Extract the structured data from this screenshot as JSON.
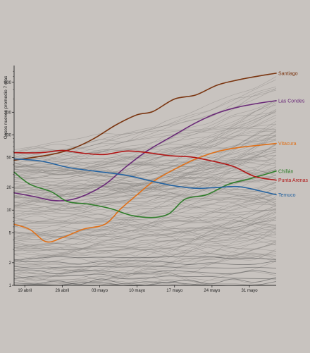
{
  "chart_data": {
    "type": "line",
    "title": "",
    "ylabel": "Casos nuevos promedio 7 días",
    "xlabel": "",
    "y_scale": "log",
    "ylim": [
      1,
      800
    ],
    "x_start": "2020-04-17",
    "x_end": "2020-06-05",
    "x_ticks": [
      {
        "date": "2020-04-19",
        "label": "19 abril"
      },
      {
        "date": "2020-04-26",
        "label": "26 abril"
      },
      {
        "date": "2020-05-03",
        "label": "03 mayo"
      },
      {
        "date": "2020-05-10",
        "label": "10 mayo"
      },
      {
        "date": "2020-05-17",
        "label": "17 mayo"
      },
      {
        "date": "2020-05-24",
        "label": "24 mayo"
      },
      {
        "date": "2020-05-31",
        "label": "31 mayo"
      }
    ],
    "y_ticks": [
      {
        "value": 1,
        "label": "1"
      },
      {
        "value": 2,
        "label": "2"
      },
      {
        "value": 5,
        "label": "5"
      },
      {
        "value": 10,
        "label": "10"
      },
      {
        "value": 20,
        "label": "20"
      },
      {
        "value": 50,
        "label": "50"
      },
      {
        "value": 100,
        "label": "100"
      },
      {
        "value": 200,
        "label": "200"
      },
      {
        "value": 500,
        "label": "500"
      }
    ],
    "background_series_color": "#8a8784",
    "highlighted_series": [
      {
        "name": "Santiago",
        "color": "#7a3510",
        "x": [
          "2020-04-17",
          "2020-04-24",
          "2020-04-28",
          "2020-05-02",
          "2020-05-06",
          "2020-05-10",
          "2020-05-13",
          "2020-05-17",
          "2020-05-21",
          "2020-05-25",
          "2020-05-29",
          "2020-06-02",
          "2020-06-05"
        ],
        "y": [
          46,
          55,
          66,
          90,
          135,
          185,
          205,
          300,
          340,
          460,
          540,
          610,
          660
        ]
      },
      {
        "name": "Las Condes",
        "color": "#6a2a78",
        "x": [
          "2020-04-17",
          "2020-04-21",
          "2020-04-24",
          "2020-04-27",
          "2020-04-30",
          "2020-05-04",
          "2020-05-08",
          "2020-05-12",
          "2020-05-17",
          "2020-05-21",
          "2020-05-25",
          "2020-05-29",
          "2020-06-02",
          "2020-06-05"
        ],
        "y": [
          17,
          15,
          13.5,
          13.5,
          15.5,
          22,
          38,
          62,
          100,
          145,
          195,
          235,
          265,
          285
        ]
      },
      {
        "name": "Vitacura",
        "color": "#e07018",
        "x": [
          "2020-04-17",
          "2020-04-20",
          "2020-04-23",
          "2020-04-26",
          "2020-04-30",
          "2020-05-04",
          "2020-05-07",
          "2020-05-10",
          "2020-05-13",
          "2020-05-17",
          "2020-05-21",
          "2020-05-25",
          "2020-05-29",
          "2020-06-02",
          "2020-06-05"
        ],
        "y": [
          6.5,
          5.5,
          3.8,
          4.3,
          5.6,
          6.5,
          10.5,
          16,
          24,
          35,
          48,
          60,
          68,
          73,
          77
        ]
      },
      {
        "name": "Chillán",
        "color": "#2f7d2a",
        "x": [
          "2020-04-17",
          "2020-04-20",
          "2020-04-24",
          "2020-04-27",
          "2020-05-01",
          "2020-05-05",
          "2020-05-09",
          "2020-05-13",
          "2020-05-16",
          "2020-05-19",
          "2020-05-23",
          "2020-05-27",
          "2020-05-31",
          "2020-06-05"
        ],
        "y": [
          32,
          22,
          17.5,
          13,
          12,
          10.5,
          8.5,
          8,
          9,
          14,
          16,
          22,
          26,
          33
        ]
      },
      {
        "name": "Punta Arenas",
        "color": "#b01515",
        "x": [
          "2020-04-17",
          "2020-04-22",
          "2020-04-26",
          "2020-04-30",
          "2020-05-04",
          "2020-05-08",
          "2020-05-12",
          "2020-05-16",
          "2020-05-20",
          "2020-05-24",
          "2020-05-28",
          "2020-06-01",
          "2020-06-05"
        ],
        "y": [
          58,
          58,
          62,
          57,
          55,
          61,
          58,
          53,
          51,
          45,
          38,
          28,
          25
        ]
      },
      {
        "name": "Temuco",
        "color": "#2563a0",
        "x": [
          "2020-04-17",
          "2020-04-22",
          "2020-04-27",
          "2020-05-02",
          "2020-05-08",
          "2020-05-13",
          "2020-05-17",
          "2020-05-21",
          "2020-05-25",
          "2020-05-29",
          "2020-06-02",
          "2020-06-05"
        ],
        "y": [
          48,
          45,
          37,
          33,
          29,
          24,
          21,
          19.5,
          20,
          20.5,
          18,
          16
        ]
      }
    ],
    "labels": {
      "Santiago": "Santiago",
      "Las Condes": "Las Condes",
      "Vitacura": "Vitacura",
      "Chillán": "Chillán",
      "Punta Arenas": "Punta Arenas",
      "Temuco": "Temuco"
    }
  },
  "colors": {
    "background": "#c8c3bf",
    "axis": "#111111"
  }
}
